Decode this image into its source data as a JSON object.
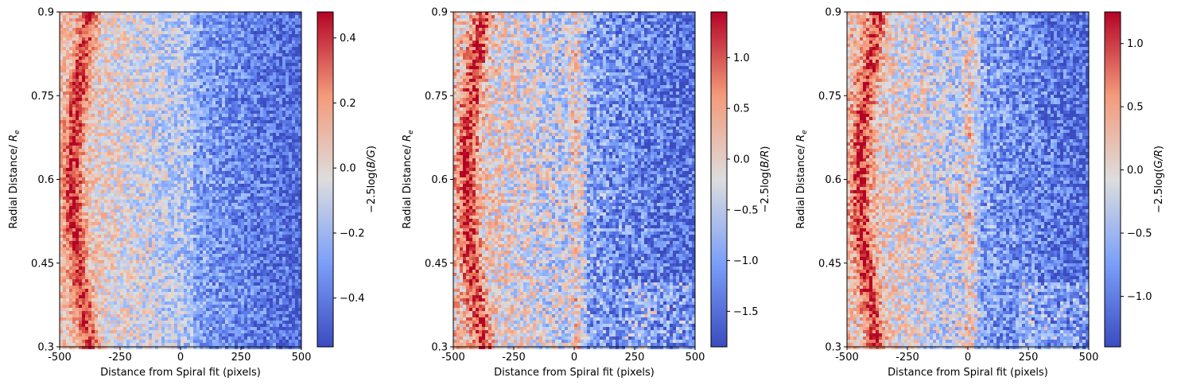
{
  "chart_data": [
    {
      "type": "heatmap",
      "xlabel": "Distance from Spiral fit (pixels)",
      "ylabel_main": "Radial Distance/ ",
      "ylabel_sym": "R",
      "ylabel_sub": "e",
      "xlim": [
        -500,
        500
      ],
      "ylim": [
        0.3,
        0.9
      ],
      "xticks": [
        "-500",
        "-250",
        "0",
        "250",
        "500"
      ],
      "xtick_values": [
        -500,
        -250,
        0,
        250,
        500
      ],
      "yticks": [
        "0.3",
        "0.45",
        "0.6",
        "0.75",
        "0.9"
      ],
      "ytick_values": [
        0.3,
        0.45,
        0.6,
        0.75,
        0.9
      ],
      "colormap": "coolwarm",
      "colorbar": {
        "label_prefix": "−2.5log(",
        "label_var": "B/G",
        "label_suffix": ")",
        "range": [
          -0.55,
          0.48
        ],
        "ticks": [
          "0.4",
          "0.2",
          "0.0",
          "−0.2",
          "−0.4"
        ],
        "tick_values": [
          0.4,
          0.2,
          0.0,
          -0.2,
          -0.4
        ]
      }
    },
    {
      "type": "heatmap",
      "xlabel": "Distance from Spiral fit (pixels)",
      "ylabel_main": "Radial Distance/ ",
      "ylabel_sym": "R",
      "ylabel_sub": "e",
      "xlim": [
        -500,
        500
      ],
      "ylim": [
        0.3,
        0.9
      ],
      "xticks": [
        "-500",
        "-250",
        "0",
        "250",
        "500"
      ],
      "xtick_values": [
        -500,
        -250,
        0,
        250,
        500
      ],
      "yticks": [
        "0.3",
        "0.45",
        "0.6",
        "0.75",
        "0.9"
      ],
      "ytick_values": [
        0.3,
        0.45,
        0.6,
        0.75,
        0.9
      ],
      "colormap": "coolwarm",
      "colorbar": {
        "label_prefix": "−2.5log(",
        "label_var": "B/R",
        "label_suffix": ")",
        "range": [
          -1.85,
          1.45
        ],
        "ticks": [
          "1.0",
          "0.5",
          "0.0",
          "−0.5",
          "−1.0",
          "−1.5"
        ],
        "tick_values": [
          1.0,
          0.5,
          0.0,
          -0.5,
          -1.0,
          -1.5
        ]
      }
    },
    {
      "type": "heatmap",
      "xlabel": "Distance from Spiral fit (pixels)",
      "ylabel_main": "Radial Distance/ ",
      "ylabel_sym": "R",
      "ylabel_sub": "e",
      "xlim": [
        -500,
        500
      ],
      "ylim": [
        0.3,
        0.9
      ],
      "xticks": [
        "-500",
        "-250",
        "0",
        "250",
        "500"
      ],
      "xtick_values": [
        -500,
        -250,
        0,
        250,
        500
      ],
      "yticks": [
        "0.3",
        "0.45",
        "0.6",
        "0.75",
        "0.9"
      ],
      "ytick_values": [
        0.3,
        0.45,
        0.6,
        0.75,
        0.9
      ],
      "colormap": "coolwarm",
      "colorbar": {
        "label_prefix": "−2.5log(",
        "label_var": "G/R",
        "label_suffix": ")",
        "range": [
          -1.4,
          1.25
        ],
        "ticks": [
          "1.0",
          "0.5",
          "0.0",
          "−0.5",
          "−1.0"
        ],
        "tick_values": [
          1.0,
          0.5,
          0.0,
          -0.5,
          -1.0
        ]
      }
    }
  ]
}
